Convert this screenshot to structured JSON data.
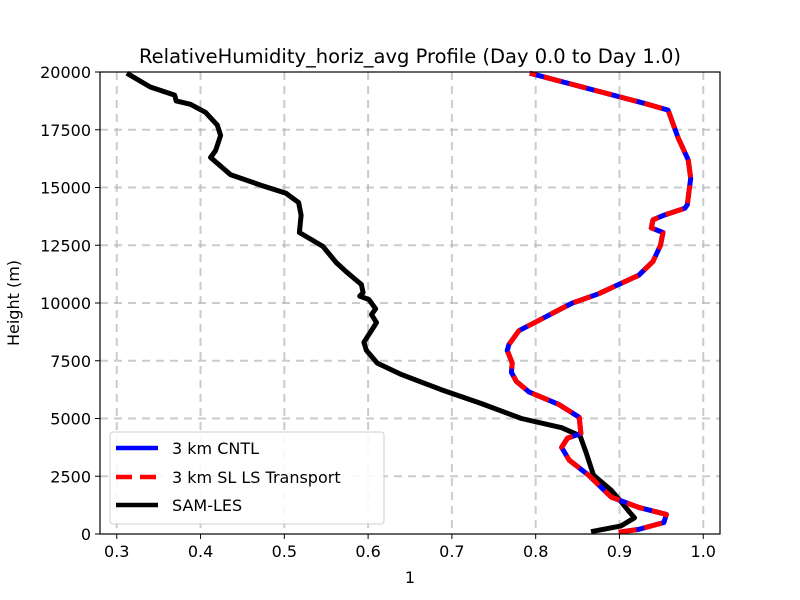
{
  "chart_data": {
    "type": "line",
    "title": "RelativeHumidity_horiz_avg Profile (Day 0.0 to Day 1.0)",
    "xlabel": "1",
    "ylabel": "Height (m)",
    "xlim": [
      0.28,
      1.02
    ],
    "ylim": [
      0,
      20000
    ],
    "xticks": [
      0.3,
      0.4,
      0.5,
      0.6,
      0.7,
      0.8,
      0.9,
      1.0
    ],
    "xtick_labels": [
      "0.3",
      "0.4",
      "0.5",
      "0.6",
      "0.7",
      "0.8",
      "0.9",
      "1.0"
    ],
    "yticks": [
      0,
      2500,
      5000,
      7500,
      10000,
      12500,
      15000,
      17500,
      20000
    ],
    "ytick_labels": [
      "0",
      "2500",
      "5000",
      "7500",
      "10000",
      "12500",
      "15000",
      "17500",
      "20000"
    ],
    "grid": true,
    "legend_position": "lower left",
    "series": [
      {
        "name": "3 km CNTL",
        "color": "#0000ff",
        "linestyle": "solid",
        "points": [
          [
            0.899,
            80
          ],
          [
            0.923,
            200
          ],
          [
            0.953,
            500
          ],
          [
            0.956,
            850
          ],
          [
            0.923,
            1150
          ],
          [
            0.89,
            1600
          ],
          [
            0.863,
            2550
          ],
          [
            0.84,
            3200
          ],
          [
            0.831,
            3750
          ],
          [
            0.838,
            4150
          ],
          [
            0.854,
            4350
          ],
          [
            0.852,
            5050
          ],
          [
            0.828,
            5600
          ],
          [
            0.792,
            6150
          ],
          [
            0.777,
            6600
          ],
          [
            0.771,
            7000
          ],
          [
            0.772,
            7400
          ],
          [
            0.766,
            7950
          ],
          [
            0.768,
            8200
          ],
          [
            0.78,
            8800
          ],
          [
            0.804,
            9250
          ],
          [
            0.833,
            9800
          ],
          [
            0.844,
            10000
          ],
          [
            0.875,
            10400
          ],
          [
            0.899,
            10800
          ],
          [
            0.923,
            11200
          ],
          [
            0.94,
            11800
          ],
          [
            0.949,
            12500
          ],
          [
            0.952,
            13050
          ],
          [
            0.938,
            13250
          ],
          [
            0.94,
            13600
          ],
          [
            0.953,
            13800
          ],
          [
            0.978,
            14100
          ],
          [
            0.981,
            14250
          ],
          [
            0.985,
            15400
          ],
          [
            0.982,
            16200
          ],
          [
            0.97,
            17150
          ],
          [
            0.958,
            18350
          ],
          [
            0.929,
            18650
          ],
          [
            0.793,
            19950
          ]
        ]
      },
      {
        "name": "3 km SL LS Transport",
        "color": "#ff0000",
        "linestyle": "dashed",
        "points": [
          [
            0.899,
            80
          ],
          [
            0.923,
            200
          ],
          [
            0.953,
            500
          ],
          [
            0.956,
            850
          ],
          [
            0.923,
            1150
          ],
          [
            0.89,
            1600
          ],
          [
            0.863,
            2550
          ],
          [
            0.84,
            3200
          ],
          [
            0.831,
            3750
          ],
          [
            0.838,
            4150
          ],
          [
            0.854,
            4350
          ],
          [
            0.852,
            5050
          ],
          [
            0.828,
            5600
          ],
          [
            0.792,
            6150
          ],
          [
            0.777,
            6600
          ],
          [
            0.771,
            7000
          ],
          [
            0.772,
            7400
          ],
          [
            0.766,
            7950
          ],
          [
            0.768,
            8200
          ],
          [
            0.78,
            8800
          ],
          [
            0.804,
            9250
          ],
          [
            0.833,
            9800
          ],
          [
            0.844,
            10000
          ],
          [
            0.875,
            10400
          ],
          [
            0.899,
            10800
          ],
          [
            0.923,
            11200
          ],
          [
            0.94,
            11800
          ],
          [
            0.949,
            12500
          ],
          [
            0.952,
            13050
          ],
          [
            0.938,
            13250
          ],
          [
            0.94,
            13600
          ],
          [
            0.953,
            13800
          ],
          [
            0.978,
            14100
          ],
          [
            0.981,
            14250
          ],
          [
            0.985,
            15400
          ],
          [
            0.982,
            16200
          ],
          [
            0.97,
            17150
          ],
          [
            0.958,
            18350
          ],
          [
            0.929,
            18650
          ],
          [
            0.793,
            19950
          ]
        ]
      },
      {
        "name": "SAM-LES",
        "color": "#000000",
        "linestyle": "solid",
        "points": [
          [
            0.866,
            100
          ],
          [
            0.902,
            350
          ],
          [
            0.918,
            700
          ],
          [
            0.912,
            950
          ],
          [
            0.902,
            1400
          ],
          [
            0.89,
            1900
          ],
          [
            0.869,
            2550
          ],
          [
            0.864,
            3100
          ],
          [
            0.86,
            3550
          ],
          [
            0.853,
            4250
          ],
          [
            0.831,
            4600
          ],
          [
            0.783,
            5000
          ],
          [
            0.735,
            5650
          ],
          [
            0.687,
            6250
          ],
          [
            0.64,
            6900
          ],
          [
            0.611,
            7400
          ],
          [
            0.598,
            7950
          ],
          [
            0.595,
            8300
          ],
          [
            0.61,
            9150
          ],
          [
            0.604,
            9500
          ],
          [
            0.609,
            9750
          ],
          [
            0.601,
            10150
          ],
          [
            0.59,
            10300
          ],
          [
            0.594,
            10450
          ],
          [
            0.592,
            10800
          ],
          [
            0.574,
            11350
          ],
          [
            0.562,
            11750
          ],
          [
            0.546,
            12450
          ],
          [
            0.518,
            13050
          ],
          [
            0.52,
            13800
          ],
          [
            0.517,
            14350
          ],
          [
            0.502,
            14750
          ],
          [
            0.472,
            15100
          ],
          [
            0.436,
            15550
          ],
          [
            0.412,
            16300
          ],
          [
            0.418,
            16600
          ],
          [
            0.424,
            17250
          ],
          [
            0.42,
            17700
          ],
          [
            0.406,
            18250
          ],
          [
            0.388,
            18600
          ],
          [
            0.371,
            18750
          ],
          [
            0.369,
            19000
          ],
          [
            0.34,
            19350
          ],
          [
            0.312,
            19950
          ]
        ]
      }
    ]
  }
}
